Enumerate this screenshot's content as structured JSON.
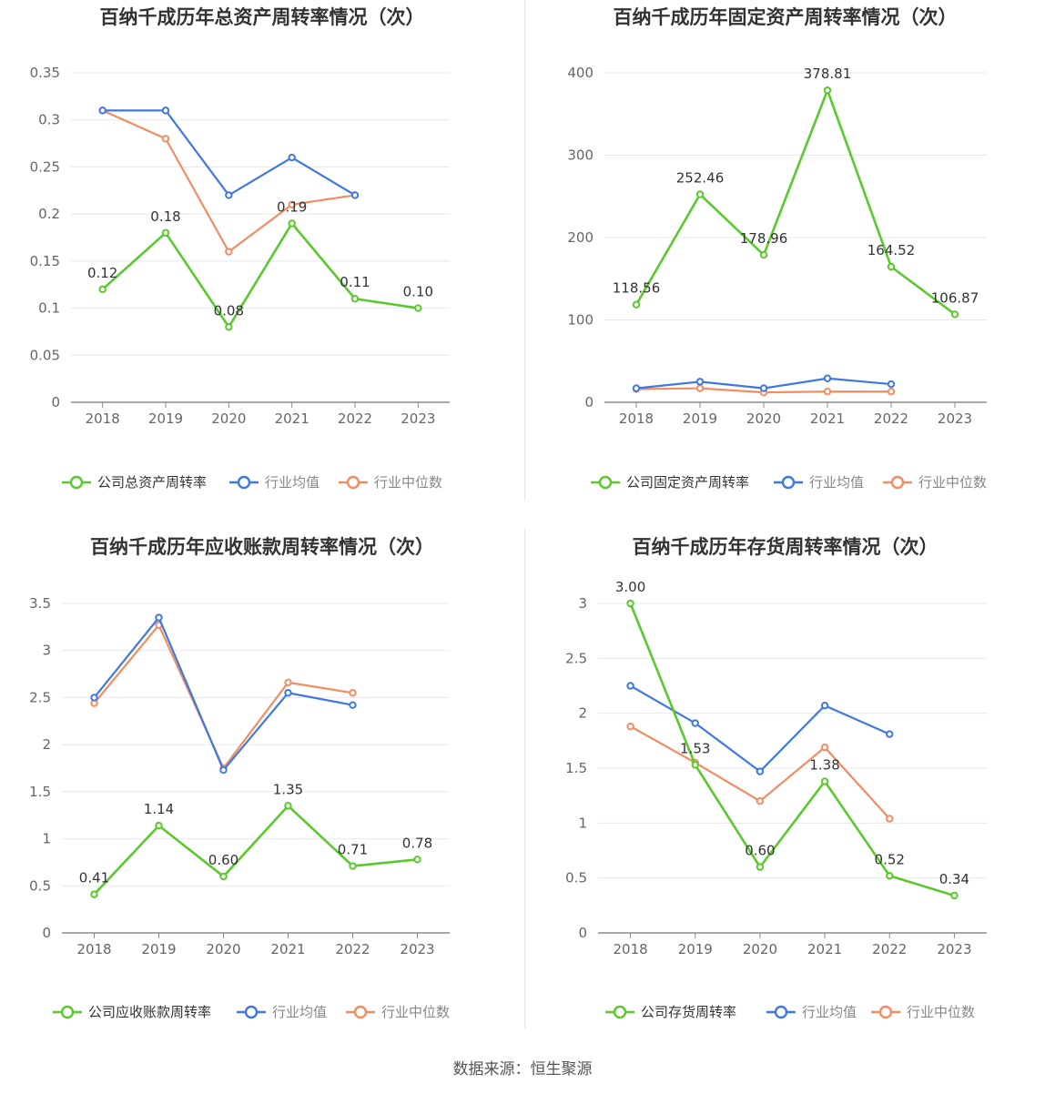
{
  "colors": {
    "company": "#5ac92d",
    "avg": "#3f78e0",
    "median": "#f28c63"
  },
  "legend": {
    "avg": "行业均值",
    "median": "行业中位数"
  },
  "source": "数据来源：恒生聚源",
  "chart_data": [
    {
      "type": "line",
      "title": "百纳千成历年总资产周转率情况（次）",
      "x": [
        "2018",
        "2019",
        "2020",
        "2021",
        "2022",
        "2023"
      ],
      "ylim": [
        0,
        0.35
      ],
      "yticks": [
        0,
        0.05,
        0.1,
        0.15,
        0.2,
        0.25,
        0.3,
        0.35
      ],
      "ytick_labels": [
        "0",
        "0.05",
        "0.1",
        "0.15",
        "0.2",
        "0.25",
        "0.3",
        "0.35"
      ],
      "grid": true,
      "legend_position": "bottom",
      "series": [
        {
          "name": "公司总资产周转率",
          "values": [
            0.12,
            0.18,
            0.08,
            0.19,
            0.11,
            0.1
          ],
          "labels": [
            "0.12",
            "0.18",
            "0.08",
            "0.19",
            "0.11",
            "0.10"
          ]
        },
        {
          "name": "行业均值",
          "values": [
            0.31,
            0.31,
            0.22,
            0.26,
            0.22,
            null
          ]
        },
        {
          "name": "行业中位数",
          "values": [
            0.31,
            0.28,
            0.16,
            0.21,
            0.22,
            null
          ]
        }
      ]
    },
    {
      "type": "line",
      "title": "百纳千成历年固定资产周转率情况（次）",
      "x": [
        "2018",
        "2019",
        "2020",
        "2021",
        "2022",
        "2023"
      ],
      "ylim": [
        0,
        400
      ],
      "yticks": [
        0,
        100,
        200,
        300,
        400
      ],
      "ytick_labels": [
        "0",
        "100",
        "200",
        "300",
        "400"
      ],
      "grid": true,
      "legend_position": "bottom",
      "series": [
        {
          "name": "公司固定资产周转率",
          "values": [
            118.56,
            252.46,
            178.96,
            378.81,
            164.52,
            106.87
          ],
          "labels": [
            "118.56",
            "252.46",
            "178.96",
            "378.81",
            "164.52",
            "106.87"
          ]
        },
        {
          "name": "行业均值",
          "values": [
            17,
            25,
            17,
            29,
            22,
            null
          ]
        },
        {
          "name": "行业中位数",
          "values": [
            16,
            17,
            12,
            13,
            13,
            null
          ]
        }
      ]
    },
    {
      "type": "line",
      "title": "百纳千成历年应收账款周转率情况（次）",
      "x": [
        "2018",
        "2019",
        "2020",
        "2021",
        "2022",
        "2023"
      ],
      "ylim": [
        0,
        3.5
      ],
      "yticks": [
        0,
        0.5,
        1,
        1.5,
        2,
        2.5,
        3,
        3.5
      ],
      "ytick_labels": [
        "0",
        "0.5",
        "1",
        "1.5",
        "2",
        "2.5",
        "3",
        "3.5"
      ],
      "grid": true,
      "legend_position": "bottom",
      "series": [
        {
          "name": "公司应收账款周转率",
          "values": [
            0.41,
            1.14,
            0.6,
            1.35,
            0.71,
            0.78
          ],
          "labels": [
            "0.41",
            "1.14",
            "0.60",
            "1.35",
            "0.71",
            "0.78"
          ]
        },
        {
          "name": "行业均值",
          "values": [
            2.5,
            3.35,
            1.73,
            2.55,
            2.42,
            null
          ]
        },
        {
          "name": "行业中位数",
          "values": [
            2.44,
            3.27,
            1.75,
            2.66,
            2.55,
            null
          ]
        }
      ]
    },
    {
      "type": "line",
      "title": "百纳千成历年存货周转率情况（次）",
      "x": [
        "2018",
        "2019",
        "2020",
        "2021",
        "2022",
        "2023"
      ],
      "ylim": [
        0,
        3
      ],
      "yticks": [
        0,
        0.5,
        1,
        1.5,
        2,
        2.5,
        3
      ],
      "ytick_labels": [
        "0",
        "0.5",
        "1",
        "1.5",
        "2",
        "2.5",
        "3"
      ],
      "grid": true,
      "legend_position": "bottom",
      "series": [
        {
          "name": "公司存货周转率",
          "values": [
            3.0,
            1.53,
            0.6,
            1.38,
            0.52,
            0.34
          ],
          "labels": [
            "3.00",
            "1.53",
            "0.60",
            "1.38",
            "0.52",
            "0.34"
          ]
        },
        {
          "name": "行业均值",
          "values": [
            2.25,
            1.91,
            1.47,
            2.07,
            1.81,
            null
          ]
        },
        {
          "name": "行业中位数",
          "values": [
            1.88,
            1.55,
            1.2,
            1.69,
            1.04,
            null
          ]
        }
      ]
    }
  ]
}
